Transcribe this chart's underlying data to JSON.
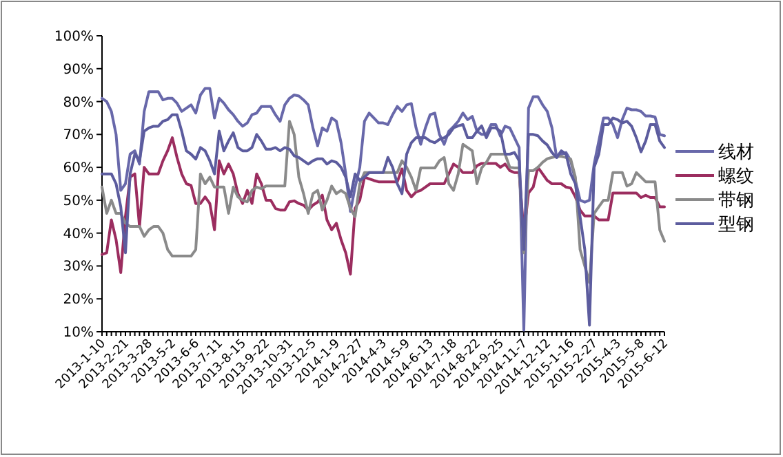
{
  "chart_data": {
    "type": "line",
    "categories": [
      "2013-1-10",
      null,
      null,
      null,
      null,
      "2013-2-21",
      null,
      null,
      null,
      null,
      "2013-3-28",
      null,
      null,
      null,
      null,
      "2013-5-2",
      null,
      null,
      null,
      null,
      "2013-6-6",
      null,
      null,
      null,
      null,
      "2013-7-11",
      null,
      null,
      null,
      null,
      "2013-8-15",
      null,
      null,
      null,
      null,
      "2013-9-22",
      null,
      null,
      null,
      null,
      "2013-10-31",
      null,
      null,
      null,
      null,
      "2013-12-5",
      null,
      null,
      null,
      null,
      "2014-1-9",
      null,
      null,
      null,
      null,
      "2014-2-27",
      null,
      null,
      null,
      null,
      "2014-4-3",
      null,
      null,
      null,
      null,
      "2014-5-9",
      null,
      null,
      null,
      null,
      "2014-6-13",
      null,
      null,
      null,
      null,
      "2014-7-18",
      null,
      null,
      null,
      null,
      "2014-8-22",
      null,
      null,
      null,
      null,
      "2014-9-25",
      null,
      null,
      null,
      null,
      "2014-11-7",
      null,
      null,
      null,
      null,
      "2014-12-12",
      null,
      null,
      null,
      null,
      "2015-1-16",
      null,
      null,
      null,
      null,
      "2015-2-27",
      null,
      null,
      null,
      null,
      "2015-4-3",
      null,
      null,
      null,
      null,
      "2015-5-8",
      null,
      null,
      null,
      null,
      "2015-6-12"
    ],
    "series": [
      {
        "name": "线材",
        "color": "#6868aa",
        "values": [
          81,
          80,
          77,
          70,
          53,
          55,
          64,
          65,
          61,
          77,
          83,
          83,
          83,
          80.5,
          81,
          81,
          79.5,
          77,
          78,
          79,
          76.5,
          82,
          84,
          84,
          75,
          81,
          79.5,
          77.5,
          76,
          74,
          72.5,
          73.5,
          76,
          76.5,
          78.5,
          78.5,
          78.5,
          76,
          74,
          79,
          81,
          82,
          81.7,
          80.5,
          79,
          72,
          66.5,
          72,
          71,
          75,
          74,
          67.5,
          58,
          46.6,
          54,
          60,
          74,
          76.5,
          75,
          73.5,
          73.5,
          73,
          76,
          78.5,
          77,
          79,
          79.4,
          72,
          67,
          72,
          76,
          76.5,
          70,
          67,
          71,
          72.4,
          74,
          76.5,
          74.5,
          75.5,
          71,
          70,
          70,
          73,
          73,
          69.5,
          72.5,
          72,
          69,
          66,
          10.5,
          78,
          81.5,
          81.5,
          79,
          77,
          72,
          63,
          64,
          64.5,
          62,
          56,
          50,
          49.4,
          50,
          61,
          68,
          75,
          75,
          73,
          69,
          74.5,
          78,
          77.5,
          77.5,
          77,
          75.6,
          75.6,
          75.3,
          70,
          69.6
        ]
      },
      {
        "name": "螺纹",
        "color": "#9b2d5f",
        "values": [
          33.5,
          34,
          44,
          38,
          28,
          45,
          57,
          58,
          42,
          60,
          58,
          58,
          58,
          62,
          65,
          69,
          63,
          58,
          55,
          54.5,
          49,
          49,
          51,
          49,
          41,
          62,
          58,
          61,
          58,
          52,
          49,
          53,
          49,
          58,
          55,
          50,
          50,
          47.5,
          47,
          47,
          49.5,
          49.8,
          49,
          48.5,
          47,
          48.5,
          49.4,
          51.5,
          44,
          41,
          43,
          38,
          34,
          27.5,
          47.5,
          50,
          57,
          56.5,
          56,
          55.6,
          55.6,
          55.6,
          55.6,
          55.6,
          59.5,
          53,
          51,
          52.5,
          53,
          54,
          55,
          55,
          55,
          55,
          58,
          61,
          60,
          58.4,
          58.4,
          58.4,
          60.5,
          61.2,
          61.2,
          61.2,
          61.2,
          60,
          61,
          59,
          58.4,
          58.4,
          40,
          52.2,
          54,
          60,
          58,
          56,
          55,
          55,
          55,
          54,
          53.7,
          51,
          47,
          45.2,
          45.2,
          45.2,
          44,
          44,
          44,
          52.2,
          52.2,
          52.2,
          52.2,
          52.2,
          52.2,
          50.8,
          51.5,
          50.8,
          50.8,
          48,
          48
        ]
      },
      {
        "name": "带钢",
        "color": "#8a8a8a",
        "values": [
          54,
          46,
          50,
          46,
          46,
          43,
          42,
          42,
          42,
          39,
          41,
          42,
          42,
          40,
          35,
          33,
          33,
          33,
          33,
          33,
          35,
          58,
          55,
          57,
          54,
          54,
          54,
          46,
          54,
          51,
          50,
          49.5,
          53,
          54,
          53.5,
          54.3,
          54.3,
          54.3,
          54.3,
          54.3,
          74,
          70,
          57,
          52,
          46,
          52,
          53,
          47,
          50,
          54.3,
          52,
          53,
          52,
          47.5,
          45,
          55,
          58.4,
          58.4,
          58.4,
          58.4,
          58.4,
          58.4,
          58.4,
          58.4,
          62,
          60,
          57,
          53,
          59.8,
          59.8,
          59.8,
          59.8,
          62,
          63,
          55,
          53,
          58,
          67,
          66,
          65,
          55,
          59.8,
          61.5,
          64,
          64,
          64,
          64,
          60,
          59.8,
          59.8,
          34,
          59,
          59,
          60,
          61.5,
          62.6,
          63,
          63.3,
          63.3,
          63,
          62.5,
          57,
          35,
          30,
          25,
          46,
          48,
          50,
          50,
          58.4,
          58.4,
          58.4,
          54.3,
          55,
          58.4,
          57,
          55.6,
          55.6,
          55.6,
          41,
          37.5
        ]
      },
      {
        "name": "型钢",
        "color": "#5c5c9e",
        "values": [
          58,
          58,
          58,
          55,
          48,
          34,
          58,
          64,
          62,
          71,
          72,
          72.5,
          72.5,
          74,
          74.5,
          76,
          76,
          71,
          65,
          64,
          62.5,
          66,
          65,
          62,
          58,
          71,
          65,
          68,
          70.5,
          66,
          65,
          65,
          66,
          70,
          68,
          65.5,
          65.5,
          66,
          65,
          66,
          65.5,
          63.5,
          63,
          62,
          61,
          62,
          62.6,
          62.6,
          61,
          62,
          61.5,
          60,
          57,
          51,
          58,
          56,
          57,
          58.4,
          58.4,
          58.4,
          58.4,
          63,
          60,
          55,
          52,
          64,
          67.5,
          69,
          69,
          69,
          68,
          67.5,
          68.5,
          69,
          70,
          72,
          72.6,
          73,
          69,
          69,
          71,
          72.6,
          69,
          72,
          72,
          71,
          64,
          64,
          64.5,
          62,
          35,
          70,
          70,
          69.6,
          68,
          66.8,
          64.5,
          63,
          65,
          64,
          58,
          55,
          45,
          35,
          12,
          60,
          64,
          73,
          73,
          75,
          74.5,
          73.5,
          74,
          72.5,
          69,
          64.7,
          68,
          73,
          73,
          68,
          66
        ]
      }
    ],
    "ylim": [
      10,
      100
    ],
    "yticks": [
      {
        "value": 10,
        "label": "10%"
      },
      {
        "value": 20,
        "label": "20%"
      },
      {
        "value": 30,
        "label": "30%"
      },
      {
        "value": 40,
        "label": "40%"
      },
      {
        "value": 50,
        "label": "50%"
      },
      {
        "value": 60,
        "label": "60%"
      },
      {
        "value": 70,
        "label": "70%"
      },
      {
        "value": 80,
        "label": "80%"
      },
      {
        "value": 90,
        "label": "90%"
      },
      {
        "value": 100,
        "label": "100%"
      }
    ],
    "grid": false,
    "legend": "right"
  }
}
